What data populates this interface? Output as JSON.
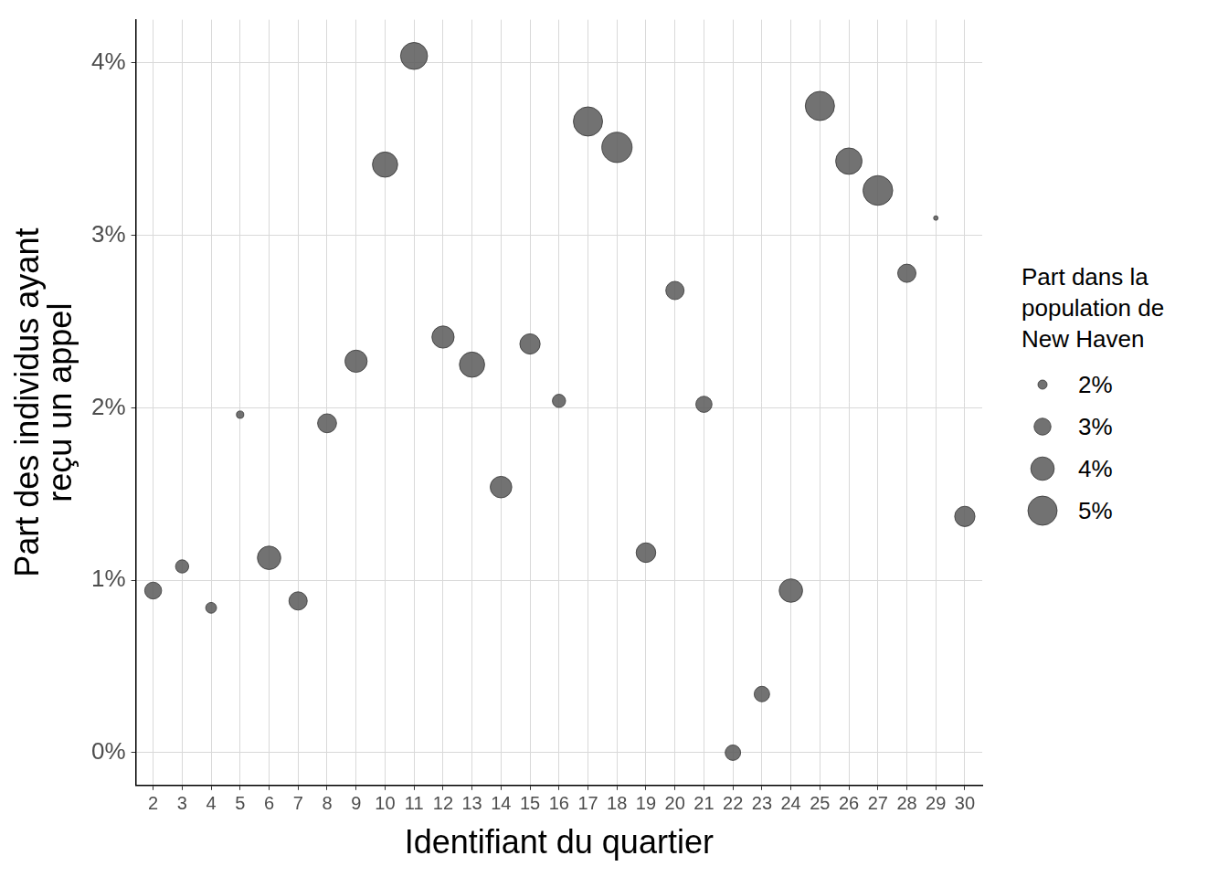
{
  "chart_data": {
    "type": "scatter",
    "marker": "circle",
    "x_label": "Identifiant du quartier",
    "y_label": [
      "Part des individus ayant",
      "reçu un appel"
    ],
    "x": [
      2,
      3,
      4,
      5,
      6,
      7,
      8,
      9,
      10,
      11,
      12,
      13,
      14,
      15,
      16,
      17,
      18,
      19,
      20,
      21,
      22,
      23,
      24,
      25,
      26,
      27,
      28,
      29,
      30
    ],
    "values": [
      0.94,
      1.08,
      0.84,
      1.96,
      1.13,
      0.88,
      1.91,
      2.27,
      3.41,
      4.04,
      2.41,
      2.25,
      1.54,
      2.37,
      2.04,
      3.66,
      3.51,
      1.16,
      2.68,
      2.02,
      0.0,
      0.34,
      0.94,
      3.75,
      3.43,
      3.26,
      2.78,
      3.1,
      1.37
    ],
    "sizes": [
      3.0,
      2.5,
      2.2,
      1.8,
      4.0,
      3.2,
      3.3,
      3.8,
      4.3,
      4.6,
      3.8,
      4.3,
      3.7,
      3.5,
      2.5,
      5.0,
      5.2,
      3.4,
      3.2,
      2.9,
      2.8,
      2.8,
      4.0,
      5.0,
      4.5,
      5.1,
      3.2,
      1.5,
      3.5
    ],
    "size_label": [
      "Part dans la",
      "population de",
      "New Haven"
    ],
    "size_ticks": [
      {
        "value": 2,
        "label": "2%"
      },
      {
        "value": 3,
        "label": "3%"
      },
      {
        "value": 4,
        "label": "4%"
      },
      {
        "value": 5,
        "label": "5%"
      }
    ],
    "color": "#595959",
    "xlim": [
      1.4,
      30.6
    ],
    "xticks": [
      2,
      3,
      4,
      5,
      6,
      7,
      8,
      9,
      10,
      11,
      12,
      13,
      14,
      15,
      16,
      17,
      18,
      19,
      20,
      21,
      22,
      23,
      24,
      25,
      26,
      27,
      28,
      29,
      30
    ],
    "ylim": [
      -0.19,
      4.25
    ],
    "yticks": [
      {
        "value": 0,
        "label": "0%"
      },
      {
        "value": 1,
        "label": "1%"
      },
      {
        "value": 2,
        "label": "2%"
      },
      {
        "value": 3,
        "label": "3%"
      },
      {
        "value": 4,
        "label": "4%"
      }
    ],
    "grid": true,
    "legend": "right"
  }
}
